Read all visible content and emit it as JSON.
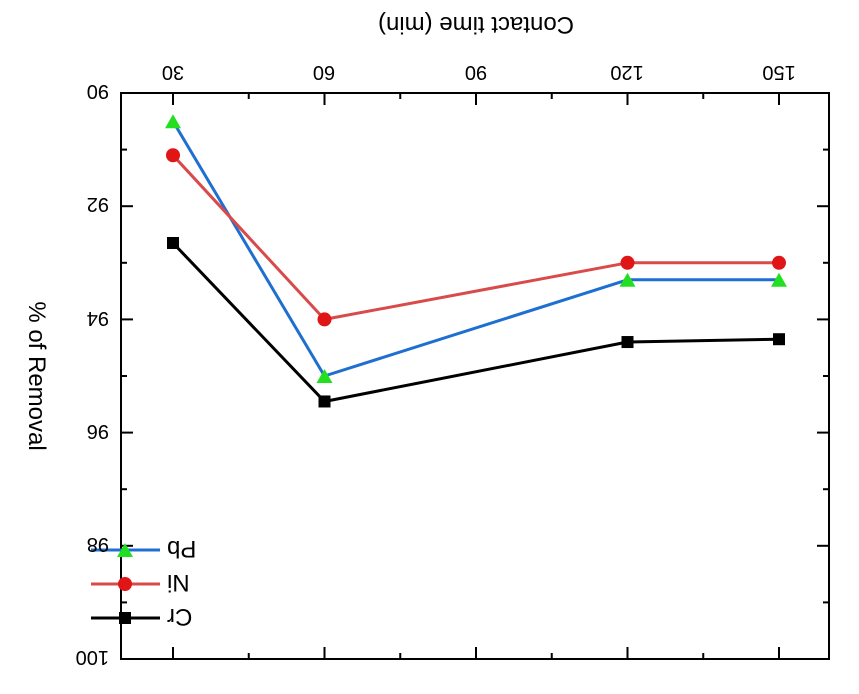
{
  "chart_data": {
    "type": "line",
    "xlabel": "Contact time (min)",
    "ylabel": "% of Removal",
    "x_tick_labels": [
      "30",
      "60",
      "90",
      "120",
      "150"
    ],
    "y_tick_labels": [
      "90",
      "92",
      "94",
      "96",
      "98",
      "100"
    ],
    "xlim": [
      30,
      150
    ],
    "ylim": [
      90,
      100
    ],
    "x": [
      30,
      60,
      120,
      150
    ],
    "series": [
      {
        "name": "Pb",
        "values": [
          90.5,
          95.0,
          93.3,
          93.3
        ],
        "color": "#1f6fd1",
        "marker": "triangle-down",
        "marker_color": "#22e01f"
      },
      {
        "name": "Ni",
        "values": [
          91.1,
          94.0,
          93.0,
          93.0
        ],
        "color": "#d94a4a",
        "marker": "circle",
        "marker_color": "#e01515"
      },
      {
        "name": "Cr",
        "values": [
          92.65,
          95.45,
          94.4,
          94.35
        ],
        "color": "#000000",
        "marker": "square",
        "marker_color": "#000000"
      }
    ],
    "legend_order": [
      "Pb",
      "Ni",
      "Cr"
    ],
    "legend_position": "bottom-right",
    "grid": false,
    "image_orientation": "rotated 180 degrees"
  }
}
